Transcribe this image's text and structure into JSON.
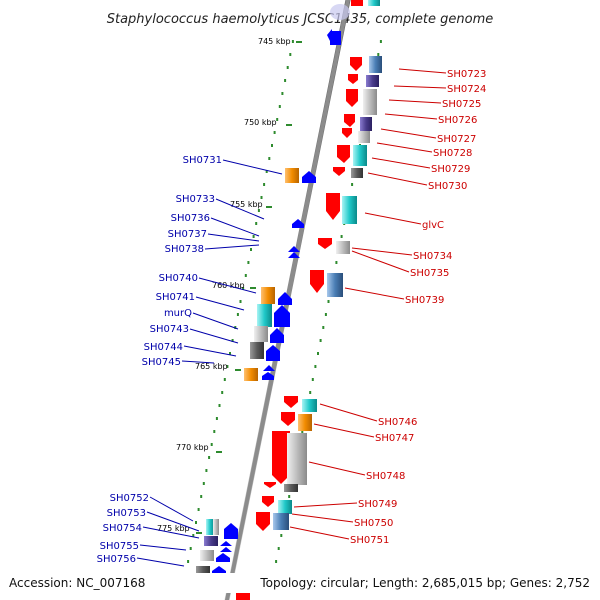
{
  "header": {
    "title": "Staphylococcus haemolyticus JCSC1435, complete genome"
  },
  "footer": {
    "accession": "Accession: NC_007168",
    "summary": "Topology: circular; Length: 2,685,015 bp; Genes: 2,752"
  },
  "ticks": [
    {
      "label": "745 kbp"
    },
    {
      "label": "750 kbp"
    },
    {
      "label": "755 kbp"
    },
    {
      "label": "760 kbp"
    },
    {
      "label": "765 kbp"
    },
    {
      "label": "770 kbp"
    },
    {
      "label": "775 kbp"
    }
  ],
  "forward_labels": [
    "SH0723",
    "SH0724",
    "SH0725",
    "SH0726",
    "SH0727",
    "SH0728",
    "SH0729",
    "SH0730",
    "glvC",
    "SH0734",
    "SH0735",
    "SH0739",
    "SH0746",
    "SH0747",
    "SH0748",
    "SH0749",
    "SH0750",
    "SH0751"
  ],
  "reverse_labels": [
    "SH0731",
    "SH0733",
    "SH0736",
    "SH0737",
    "SH0738",
    "SH0740",
    "SH0741",
    "murQ",
    "SH0743",
    "SH0744",
    "SH0745",
    "SH0752",
    "SH0753",
    "SH0754",
    "SH0755",
    "SH0756"
  ],
  "colors": {
    "backbone": "#8c8c8c",
    "forward_gene": "#ff0000",
    "reverse_gene": "#0000ff",
    "cog_teal": "#20c8c8",
    "cog_steel": "#4a7eb5",
    "cog_orange": "#f28c00",
    "cog_grey": "#b0b0b0",
    "cog_dark": "#5a5a5a",
    "cog_purple": "#4a3c8c",
    "gc_dots": "#2e8b2e",
    "label_forward": "#cc0000",
    "label_reverse": "#0000aa"
  }
}
